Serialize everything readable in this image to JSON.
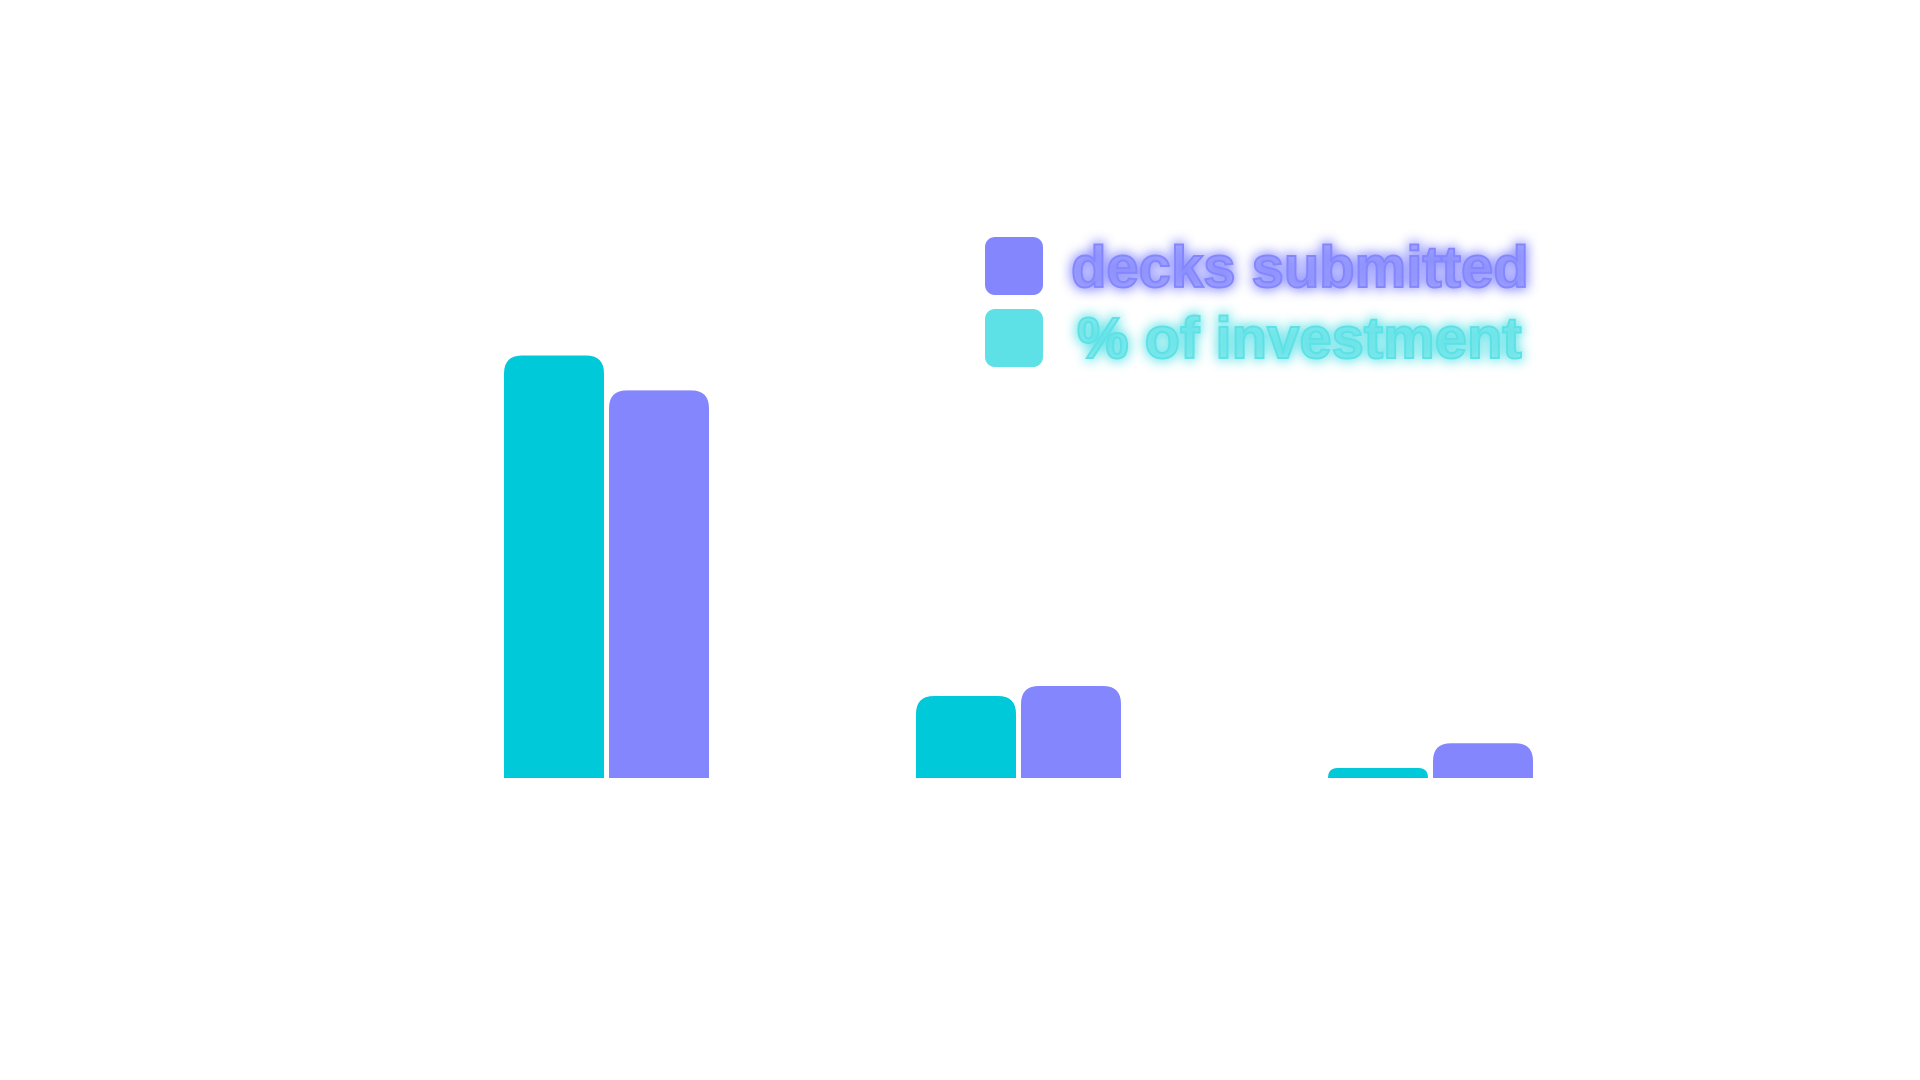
{
  "chart_data": {
    "type": "bar",
    "title": "",
    "xlabel": "",
    "ylabel": "",
    "categories": [
      "",
      "",
      ""
    ],
    "series": [
      {
        "name": "% of investment",
        "color": "#00C9DA",
        "legend_color": "#5DE1E6",
        "values": [
          85,
          16.5,
          2
        ]
      },
      {
        "name": "decks submitted",
        "color": "#8486FD",
        "legend_color": "#8486FD",
        "values": [
          78,
          18.5,
          7
        ]
      }
    ],
    "ylim": [
      0,
      100
    ],
    "grid": false,
    "legend": {
      "position": "top-right",
      "order": [
        "decks submitted",
        "% of investment"
      ]
    }
  }
}
